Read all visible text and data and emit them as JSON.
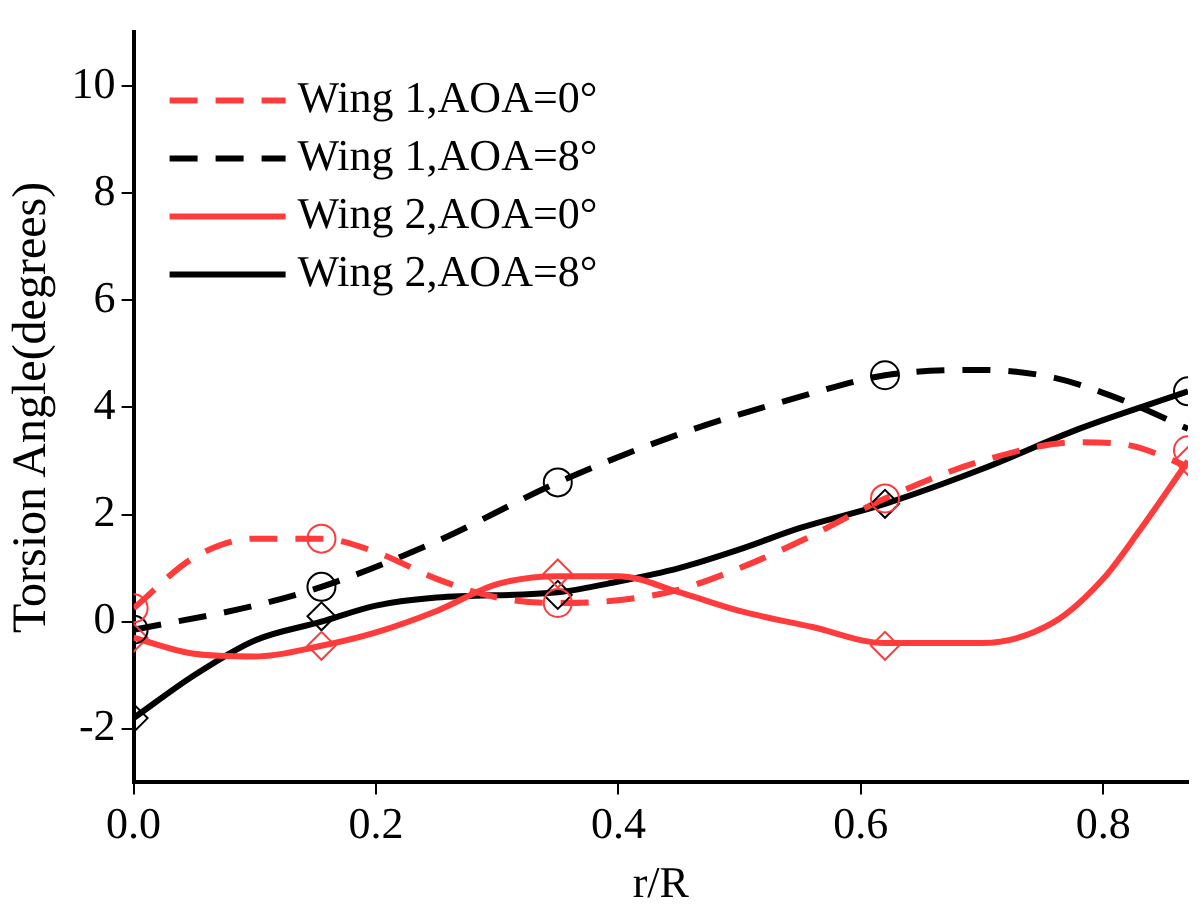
{
  "chart_data": {
    "type": "line",
    "xlabel": "r/R",
    "ylabel": "Torsion Angle(degrees)",
    "xlim": [
      0,
      0.87
    ],
    "xticks": [
      {
        "value": 0,
        "label": "0.0"
      },
      0.2,
      0.4,
      0.6,
      0.8
    ],
    "ylim": [
      -3,
      11
    ],
    "yticks": [
      -2,
      0,
      2,
      4,
      6,
      8,
      10
    ],
    "grid": false,
    "legend": "top left",
    "series": [
      {
        "name": "Wing 1,AOA=0°",
        "color": "#ff3b3b",
        "line_style": "dashed",
        "marker": "none",
        "x": [
          0,
          0.05,
          0.1,
          0.155,
          0.2,
          0.25,
          0.3,
          0.35,
          0.4,
          0.45,
          0.5,
          0.55,
          0.62,
          0.7,
          0.78,
          0.82,
          0.87
        ],
        "values": [
          0.25,
          1.2,
          1.55,
          1.55,
          1.3,
          0.8,
          0.45,
          0.35,
          0.4,
          0.6,
          1.0,
          1.5,
          2.3,
          3.0,
          3.35,
          3.3,
          2.9
        ]
      },
      {
        "name": "Wing 1,AOA=8°",
        "color": "#000000",
        "line_style": "dashed",
        "marker": "none",
        "x": [
          0,
          0.1,
          0.155,
          0.25,
          0.35,
          0.45,
          0.55,
          0.62,
          0.7,
          0.76,
          0.82,
          0.87
        ],
        "values": [
          -0.15,
          0.3,
          0.65,
          1.5,
          2.6,
          3.5,
          4.2,
          4.6,
          4.7,
          4.55,
          4.1,
          3.6
        ]
      },
      {
        "name": "Wing 2,AOA=0°",
        "color": "#ff3b3b",
        "line_style": "solid",
        "marker": "none",
        "x": [
          0,
          0.05,
          0.1,
          0.155,
          0.2,
          0.25,
          0.3,
          0.35,
          0.4,
          0.45,
          0.5,
          0.56,
          0.62,
          0.7,
          0.76,
          0.8,
          0.83,
          0.87
        ],
        "values": [
          -0.3,
          -0.6,
          -0.65,
          -0.45,
          -0.2,
          0.2,
          0.7,
          0.85,
          0.85,
          0.55,
          0.2,
          -0.1,
          -0.4,
          -0.4,
          0.0,
          0.8,
          1.7,
          3.0
        ]
      },
      {
        "name": "Wing 2,AOA=8°",
        "color": "#000000",
        "line_style": "solid",
        "marker": "none",
        "x": [
          0,
          0.05,
          0.1,
          0.155,
          0.2,
          0.25,
          0.35,
          0.4,
          0.45,
          0.5,
          0.55,
          0.62,
          0.7,
          0.78,
          0.87
        ],
        "values": [
          -1.8,
          -1.0,
          -0.35,
          0.0,
          0.3,
          0.45,
          0.55,
          0.75,
          1.0,
          1.35,
          1.75,
          2.2,
          2.85,
          3.6,
          4.3
        ]
      },
      {
        "type": "scatter",
        "color": "#ff3b3b",
        "marker": "circle",
        "x": [
          0,
          0.155,
          0.35,
          0.62,
          0.87
        ],
        "values": [
          0.25,
          1.55,
          0.35,
          2.3,
          3.2
        ]
      },
      {
        "type": "scatter",
        "color": "#000000",
        "marker": "circle",
        "x": [
          0,
          0.155,
          0.35,
          0.62,
          0.87
        ],
        "values": [
          -0.15,
          0.65,
          2.6,
          4.6,
          4.3
        ]
      },
      {
        "type": "scatter",
        "color": "#ff3b3b",
        "marker": "diamond",
        "x": [
          0,
          0.155,
          0.35,
          0.62,
          0.87
        ],
        "values": [
          -0.3,
          -0.45,
          0.9,
          -0.45,
          3.0
        ]
      },
      {
        "type": "scatter",
        "color": "#000000",
        "marker": "diamond",
        "x": [
          0,
          0.155,
          0.35,
          0.62
        ],
        "values": [
          -1.8,
          0.1,
          0.5,
          2.2
        ]
      }
    ]
  }
}
